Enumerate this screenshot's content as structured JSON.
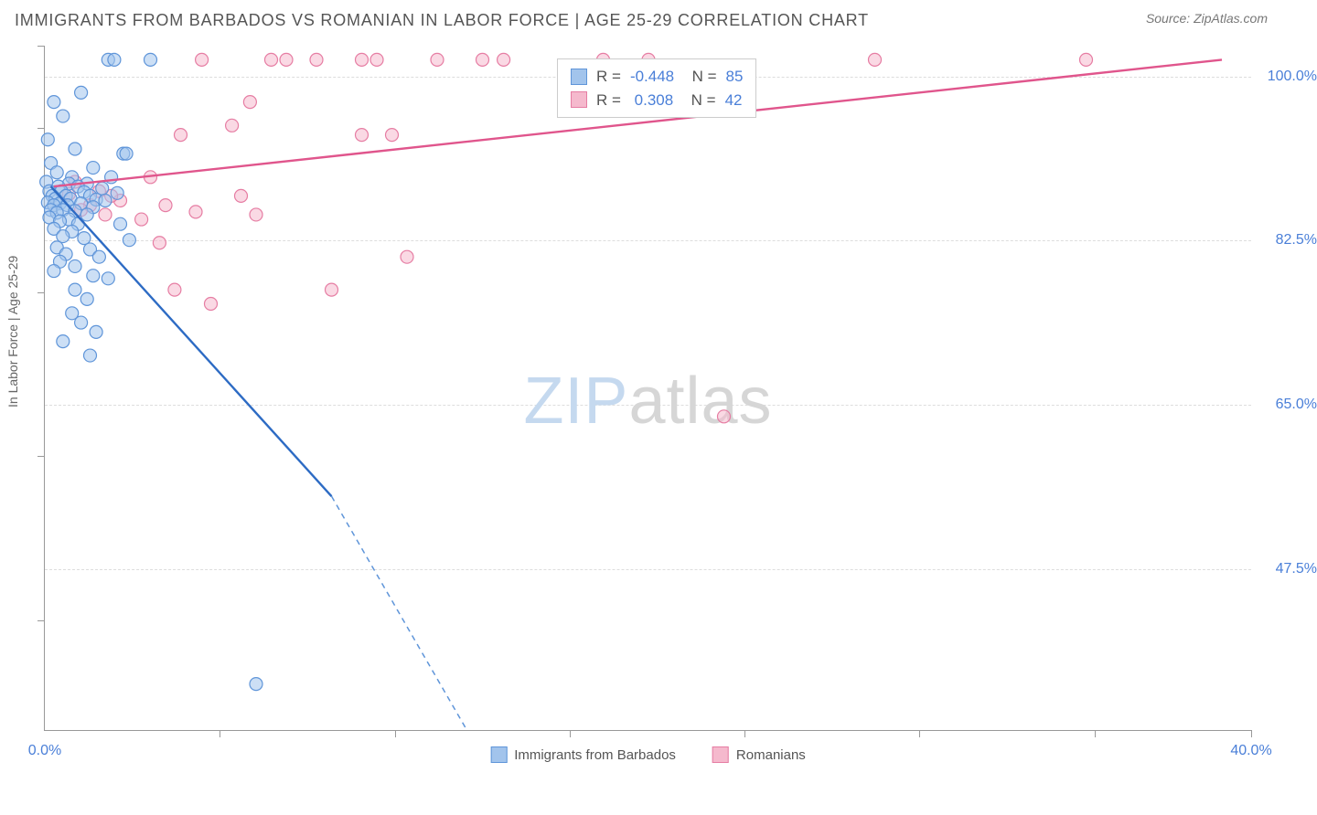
{
  "header": {
    "title": "IMMIGRANTS FROM BARBADOS VS ROMANIAN IN LABOR FORCE | AGE 25-29 CORRELATION CHART",
    "source": "Source: ZipAtlas.com"
  },
  "chart": {
    "type": "scatter",
    "ylabel": "In Labor Force | Age 25-29",
    "xlim": [
      0,
      40
    ],
    "ylim": [
      30,
      103
    ],
    "xtick_labels": {
      "left": "0.0%",
      "right": "40.0%"
    },
    "xtick_positions_pct": [
      14.5,
      29,
      43.5,
      58,
      72.5,
      87,
      100
    ],
    "ytick_positions_pct_from_top": [
      0,
      12,
      36,
      60,
      84
    ],
    "yticks": [
      {
        "pos_from_top_pct": 4.5,
        "label": "100.0%"
      },
      {
        "pos_from_top_pct": 28.5,
        "label": "82.5%"
      },
      {
        "pos_from_top_pct": 52.5,
        "label": "65.0%"
      },
      {
        "pos_from_top_pct": 76.5,
        "label": "47.5%"
      }
    ],
    "grid_color": "#dddddd",
    "series": {
      "barbados": {
        "label": "Immigrants from Barbados",
        "fill": "#a2c4ec",
        "stroke": "#5f95d9",
        "line_color": "#2d6bc4",
        "marker_radius": 7,
        "fill_opacity": 0.55,
        "R": "-0.448",
        "N": "85",
        "line": {
          "x1": 0.2,
          "y1": 88,
          "x2": 9.5,
          "y2": 55,
          "dash_x2": 14,
          "dash_y2": 30
        },
        "points_xy": [
          [
            2.1,
            101.5
          ],
          [
            2.3,
            101.5
          ],
          [
            3.5,
            101.5
          ],
          [
            1.2,
            98
          ],
          [
            0.3,
            97
          ],
          [
            0.6,
            95.5
          ],
          [
            0.1,
            93
          ],
          [
            1.0,
            92
          ],
          [
            2.6,
            91.5
          ],
          [
            2.7,
            91.5
          ],
          [
            0.2,
            90.5
          ],
          [
            1.6,
            90
          ],
          [
            0.4,
            89.5
          ],
          [
            0.9,
            89
          ],
          [
            2.2,
            89
          ],
          [
            0.05,
            88.5
          ],
          [
            0.8,
            88.3
          ],
          [
            1.4,
            88.3
          ],
          [
            0.45,
            88
          ],
          [
            1.1,
            88
          ],
          [
            1.9,
            87.8
          ],
          [
            0.15,
            87.5
          ],
          [
            0.55,
            87.5
          ],
          [
            1.3,
            87.4
          ],
          [
            2.4,
            87.3
          ],
          [
            0.25,
            87
          ],
          [
            0.7,
            87
          ],
          [
            1.5,
            87
          ],
          [
            0.35,
            86.7
          ],
          [
            0.85,
            86.7
          ],
          [
            1.7,
            86.6
          ],
          [
            2.0,
            86.5
          ],
          [
            0.1,
            86.3
          ],
          [
            0.5,
            86.2
          ],
          [
            1.2,
            86.2
          ],
          [
            0.3,
            86
          ],
          [
            0.75,
            86
          ],
          [
            1.6,
            85.8
          ],
          [
            0.2,
            85.5
          ],
          [
            0.6,
            85.5
          ],
          [
            1.0,
            85.4
          ],
          [
            0.4,
            85.2
          ],
          [
            1.4,
            85
          ],
          [
            0.15,
            84.7
          ],
          [
            0.8,
            84.5
          ],
          [
            0.5,
            84.3
          ],
          [
            1.1,
            84
          ],
          [
            2.5,
            84
          ],
          [
            0.3,
            83.5
          ],
          [
            0.9,
            83.2
          ],
          [
            0.6,
            82.7
          ],
          [
            1.3,
            82.5
          ],
          [
            2.8,
            82.3
          ],
          [
            0.4,
            81.5
          ],
          [
            1.5,
            81.3
          ],
          [
            0.7,
            80.8
          ],
          [
            1.8,
            80.5
          ],
          [
            0.5,
            80
          ],
          [
            1.0,
            79.5
          ],
          [
            0.3,
            79
          ],
          [
            1.6,
            78.5
          ],
          [
            2.1,
            78.2
          ],
          [
            1.0,
            77
          ],
          [
            1.4,
            76
          ],
          [
            0.9,
            74.5
          ],
          [
            1.2,
            73.5
          ],
          [
            1.7,
            72.5
          ],
          [
            0.6,
            71.5
          ],
          [
            1.5,
            70
          ],
          [
            7.0,
            35
          ]
        ]
      },
      "romanians": {
        "label": "Romanians",
        "fill": "#f5b9cd",
        "stroke": "#e67da3",
        "line_color": "#e0558c",
        "marker_radius": 7,
        "fill_opacity": 0.55,
        "R": "0.308",
        "N": "42",
        "line": {
          "x1": 0.3,
          "y1": 88,
          "x2": 39,
          "y2": 101.5
        },
        "points_xy": [
          [
            5.2,
            101.5
          ],
          [
            7.5,
            101.5
          ],
          [
            8.0,
            101.5
          ],
          [
            9.0,
            101.5
          ],
          [
            10.5,
            101.5
          ],
          [
            11.0,
            101.5
          ],
          [
            13.0,
            101.5
          ],
          [
            14.5,
            101.5
          ],
          [
            15.2,
            101.5
          ],
          [
            18.5,
            101.5
          ],
          [
            20.0,
            101.5
          ],
          [
            27.5,
            101.5
          ],
          [
            34.5,
            101.5
          ],
          [
            6.8,
            97
          ],
          [
            6.2,
            94.5
          ],
          [
            4.5,
            93.5
          ],
          [
            10.5,
            93.5
          ],
          [
            11.5,
            93.5
          ],
          [
            3.5,
            89
          ],
          [
            6.5,
            87
          ],
          [
            2.5,
            86.5
          ],
          [
            4.0,
            86
          ],
          [
            7.0,
            85
          ],
          [
            3.2,
            84.5
          ],
          [
            5.0,
            85.3
          ],
          [
            3.8,
            82
          ],
          [
            12.0,
            80.5
          ],
          [
            4.3,
            77
          ],
          [
            9.5,
            77
          ],
          [
            5.5,
            75.5
          ],
          [
            22.5,
            63.5
          ],
          [
            1.0,
            88.5
          ],
          [
            1.8,
            87.5
          ],
          [
            2.2,
            87
          ],
          [
            0.8,
            87.2
          ],
          [
            1.5,
            86
          ],
          [
            2.0,
            85
          ],
          [
            1.2,
            85.5
          ]
        ]
      }
    },
    "watermark": {
      "prefix": "ZIP",
      "suffix": "atlas"
    },
    "background_color": "#ffffff"
  }
}
